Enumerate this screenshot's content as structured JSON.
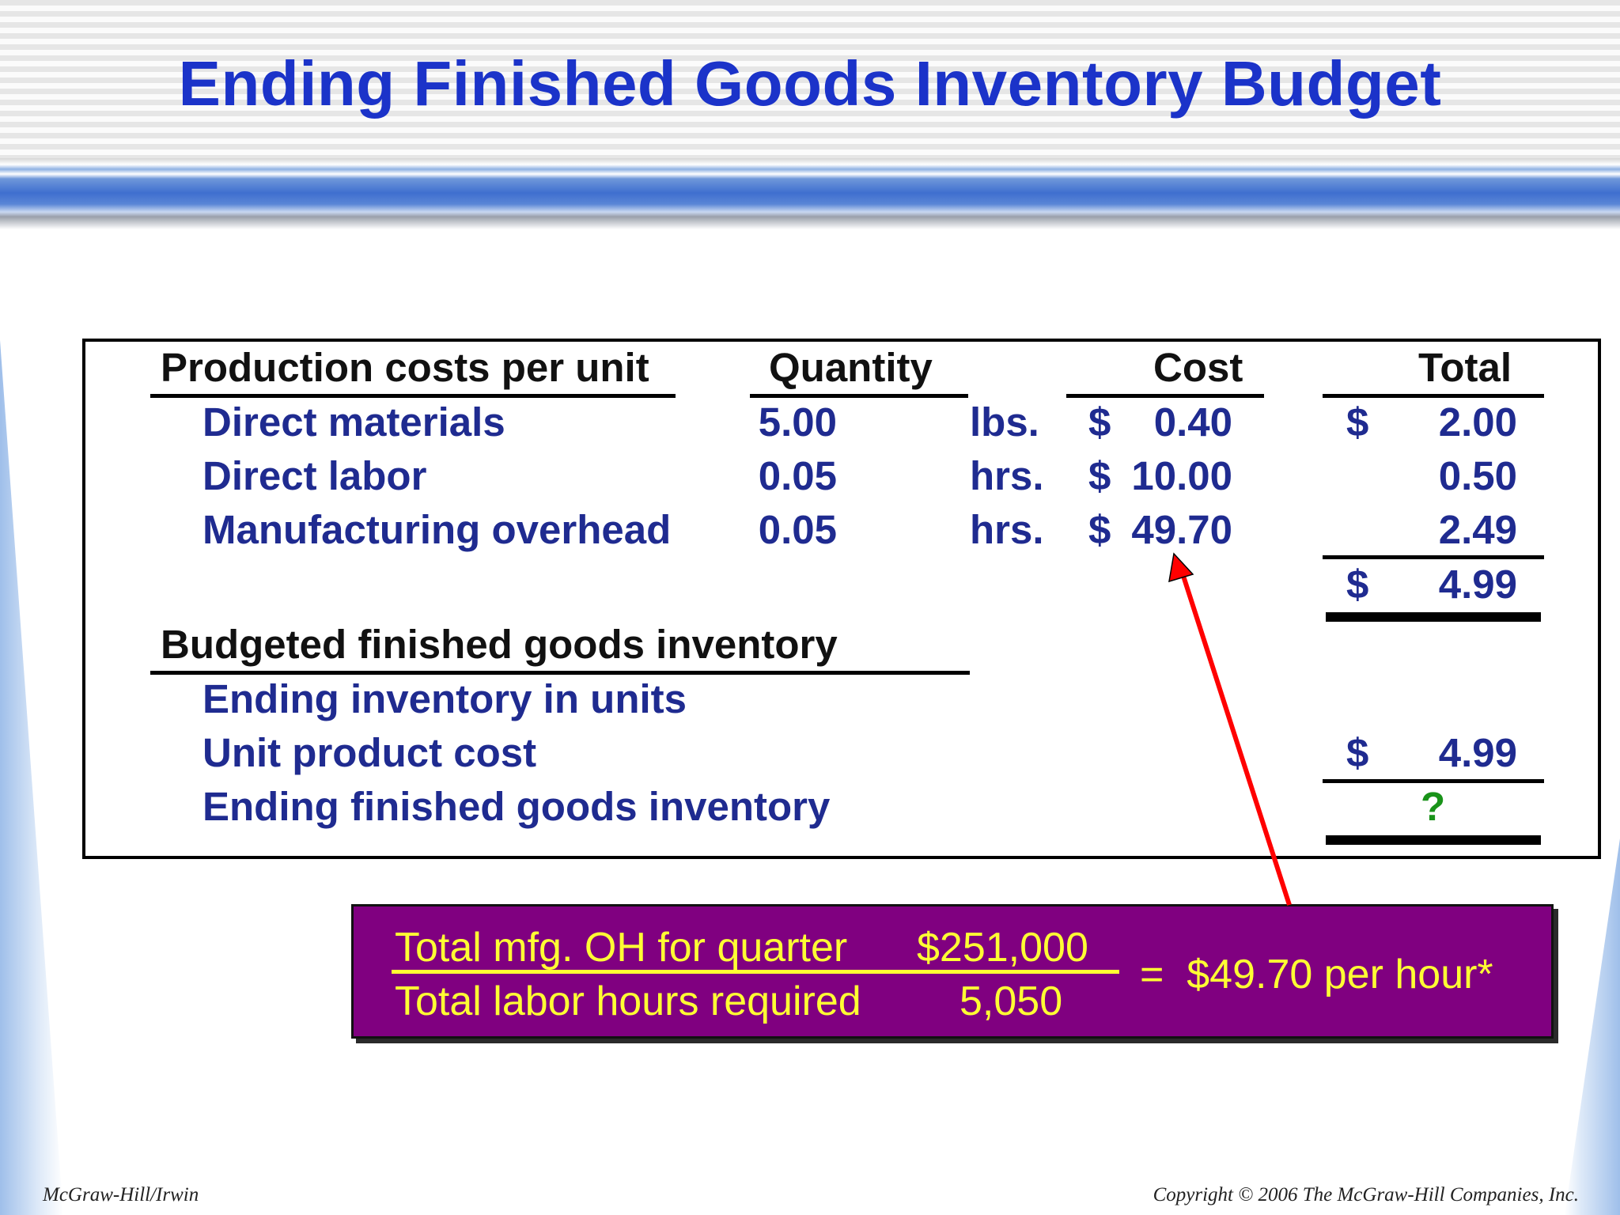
{
  "slide": {
    "title": "Ending Finished Goods Inventory Budget"
  },
  "table": {
    "headers": {
      "item": "Production costs per unit",
      "quantity": "Quantity",
      "cost": "Cost",
      "total": "Total"
    },
    "rows": [
      {
        "label": "Direct materials",
        "qty": "5.00",
        "unit": "lbs.",
        "cost_sign": "$",
        "cost": "0.40",
        "total_sign": "$",
        "total": "2.00"
      },
      {
        "label": "Direct labor",
        "qty": "0.05",
        "unit": "hrs.",
        "cost_sign": "$",
        "cost": "10.00",
        "total_sign": "",
        "total": "0.50"
      },
      {
        "label": "Manufacturing overhead",
        "qty": "0.05",
        "unit": "hrs.",
        "cost_sign": "$",
        "cost": "49.70",
        "total_sign": "",
        "total": "2.49"
      }
    ],
    "unit_total": {
      "sign": "$",
      "value": "4.99"
    },
    "budget_section": {
      "header": "Budgeted finished goods inventory",
      "rows": [
        {
          "label": "Ending inventory in units",
          "sign": "",
          "value": ""
        },
        {
          "label": "Unit product cost",
          "sign": "$",
          "value": "4.99"
        },
        {
          "label": "Ending finished goods inventory",
          "sign": "",
          "value": "?"
        }
      ]
    }
  },
  "overhead_box": {
    "numerator_label": "Total mfg. OH for quarter",
    "numerator_value": "$251,000",
    "denominator_label": "Total labor hours required",
    "denominator_value": "5,050",
    "result": "=  $49.70 per hour*",
    "background_color": "#800080",
    "text_color": "#ffff33"
  },
  "colors": {
    "title": "#1b33c9",
    "row_text": "#1f2b90",
    "arrow": "#ff0000",
    "question_mark": "#199319"
  },
  "footer": {
    "left": "McGraw-Hill/Irwin",
    "right": "Copyright © 2006 The McGraw-Hill Companies, Inc."
  }
}
